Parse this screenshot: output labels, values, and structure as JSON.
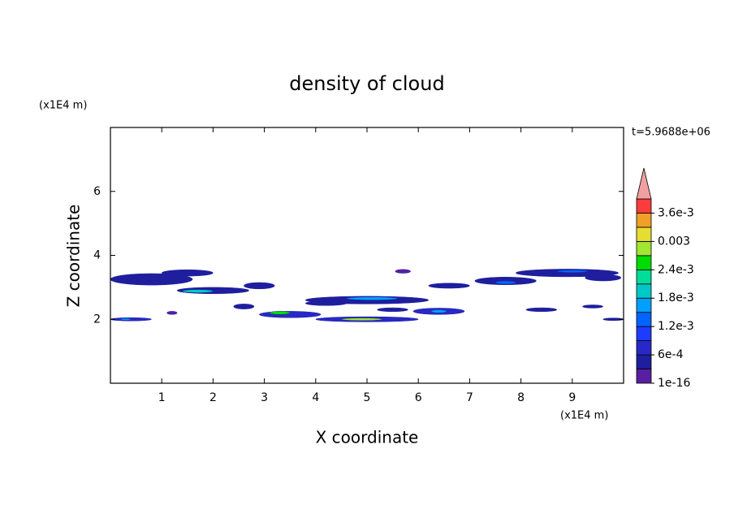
{
  "chart_data": {
    "type": "contour",
    "title": "density of cloud",
    "xlabel": "X coordinate",
    "ylabel": "Z coordinate",
    "xunit": "(x1E4 m)",
    "yunit": "(x1E4 m)",
    "time_label": "t=5.9688e+06",
    "xlim": [
      0,
      10
    ],
    "xticks": [
      1,
      2,
      3,
      4,
      5,
      6,
      7,
      8,
      9
    ],
    "ylim": [
      0,
      8
    ],
    "yticks": [
      2,
      4,
      6
    ],
    "colorbar": {
      "levels": [
        1e-16,
        0.0003,
        0.0006,
        0.0009,
        0.0012,
        0.0015,
        0.0018,
        0.0021,
        0.0024,
        0.0027,
        0.003,
        0.0033,
        0.0036,
        0.0039
      ],
      "colors": [
        "#5a1ea0",
        "#1e1e9e",
        "#2828c8",
        "#1e3cff",
        "#0064ff",
        "#00a0ff",
        "#00c8c8",
        "#00dc9a",
        "#00dc00",
        "#a0e632",
        "#e6dc32",
        "#f0a028",
        "#fa3c3c",
        "#f0a0a0"
      ],
      "ticks": [
        {
          "value": 1e-16,
          "label": "1e-16"
        },
        {
          "value": 0.0006,
          "label": "6e-4"
        },
        {
          "value": 0.0012,
          "label": "1.2e-3"
        },
        {
          "value": 0.0018,
          "label": "1.8e-3"
        },
        {
          "value": 0.0024,
          "label": "2.4e-3"
        },
        0.003,
        {
          "value": 0.0036,
          "label": "3.6e-3"
        }
      ]
    },
    "patches": [
      {
        "x": 0.8,
        "z": 3.25,
        "dx": 0.8,
        "dz": 0.18,
        "value": 0.0004
      },
      {
        "x": 1.5,
        "z": 3.45,
        "dx": 0.5,
        "dz": 0.1,
        "value": 0.0003
      },
      {
        "x": 2.0,
        "z": 2.9,
        "dx": 0.7,
        "dz": 0.1,
        "value": 0.0005
      },
      {
        "x": 1.7,
        "z": 2.88,
        "dx": 0.3,
        "dz": 0.05,
        "value": 0.0018
      },
      {
        "x": 2.9,
        "z": 3.05,
        "dx": 0.3,
        "dz": 0.1,
        "value": 0.0004
      },
      {
        "x": 2.6,
        "z": 2.4,
        "dx": 0.2,
        "dz": 0.08,
        "value": 0.0005
      },
      {
        "x": 0.4,
        "z": 2.0,
        "dx": 0.4,
        "dz": 0.05,
        "value": 0.0006
      },
      {
        "x": 0.3,
        "z": 2.0,
        "dx": 0.1,
        "dz": 0.03,
        "value": 0.0016
      },
      {
        "x": 1.2,
        "z": 2.2,
        "dx": 0.1,
        "dz": 0.05,
        "value": 0.0002
      },
      {
        "x": 3.5,
        "z": 2.15,
        "dx": 0.6,
        "dz": 0.1,
        "value": 0.0007
      },
      {
        "x": 3.3,
        "z": 2.2,
        "dx": 0.2,
        "dz": 0.05,
        "value": 0.0026
      },
      {
        "x": 5.0,
        "z": 2.0,
        "dx": 1.0,
        "dz": 0.08,
        "value": 0.0008
      },
      {
        "x": 4.9,
        "z": 2.0,
        "dx": 0.4,
        "dz": 0.04,
        "value": 0.0028
      },
      {
        "x": 5.0,
        "z": 2.6,
        "dx": 1.2,
        "dz": 0.12,
        "value": 0.0005
      },
      {
        "x": 5.1,
        "z": 2.65,
        "dx": 0.5,
        "dz": 0.05,
        "value": 0.0017
      },
      {
        "x": 4.2,
        "z": 2.5,
        "dx": 0.4,
        "dz": 0.07,
        "value": 0.0004
      },
      {
        "x": 5.5,
        "z": 2.3,
        "dx": 0.3,
        "dz": 0.06,
        "value": 0.0004
      },
      {
        "x": 6.4,
        "z": 2.25,
        "dx": 0.5,
        "dz": 0.1,
        "value": 0.0006
      },
      {
        "x": 6.4,
        "z": 2.25,
        "dx": 0.15,
        "dz": 0.05,
        "value": 0.0016
      },
      {
        "x": 5.7,
        "z": 3.5,
        "dx": 0.15,
        "dz": 0.06,
        "value": 0.0002
      },
      {
        "x": 6.6,
        "z": 3.05,
        "dx": 0.4,
        "dz": 0.08,
        "value": 0.0004
      },
      {
        "x": 7.7,
        "z": 3.2,
        "dx": 0.6,
        "dz": 0.12,
        "value": 0.0005
      },
      {
        "x": 7.7,
        "z": 3.15,
        "dx": 0.2,
        "dz": 0.05,
        "value": 0.0013
      },
      {
        "x": 8.9,
        "z": 3.45,
        "dx": 1.0,
        "dz": 0.12,
        "value": 0.0005
      },
      {
        "x": 9.0,
        "z": 3.5,
        "dx": 0.3,
        "dz": 0.04,
        "value": 0.0013
      },
      {
        "x": 9.6,
        "z": 3.3,
        "dx": 0.35,
        "dz": 0.1,
        "value": 0.0004
      },
      {
        "x": 8.4,
        "z": 2.3,
        "dx": 0.3,
        "dz": 0.06,
        "value": 0.0003
      },
      {
        "x": 9.4,
        "z": 2.4,
        "dx": 0.2,
        "dz": 0.05,
        "value": 0.0003
      },
      {
        "x": 9.8,
        "z": 2.0,
        "dx": 0.2,
        "dz": 0.04,
        "value": 0.0005
      }
    ]
  }
}
